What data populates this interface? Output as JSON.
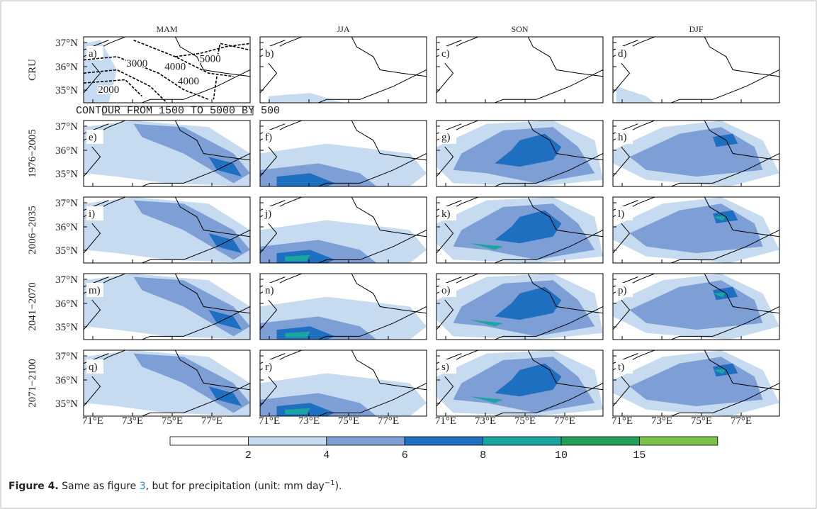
{
  "columns": [
    "MAM",
    "JJA",
    "SON",
    "DJF"
  ],
  "rows": [
    "CRU",
    "1976−2005",
    "2006−2035",
    "2041−2070",
    "2071−2100"
  ],
  "panels": [
    "a)",
    "b)",
    "c)",
    "d)",
    "e)",
    "f)",
    "g)",
    "h)",
    "i)",
    "j)",
    "k)",
    "l)",
    "m)",
    "n)",
    "o)",
    "p)",
    "q)",
    "r)",
    "s)",
    "t)"
  ],
  "lat_ticks": [
    "37°N",
    "36°N",
    "35°N"
  ],
  "lon_ticks": [
    "71°E",
    "73°E",
    "75°E",
    "77°E"
  ],
  "contour_note": "CONTOUR FROM 1500 TO 5000 BY 500",
  "contour_labels": [
    "2000",
    "3000",
    "4000",
    "4000",
    "5000"
  ],
  "colorbar": {
    "labels": [
      "2",
      "4",
      "6",
      "8",
      "10",
      "15"
    ],
    "colors": [
      "#ffffff",
      "#c6dbf0",
      "#7d9fd6",
      "#1f6fc0",
      "#1aa5a0",
      "#22a058",
      "#7cc14a"
    ]
  },
  "caption": {
    "label": "Figure 4.",
    "before": " Same as figure ",
    "ref": "3",
    "after": ", but for precipitation (unit: mm day",
    "sup": "−1",
    "end": ")."
  }
}
